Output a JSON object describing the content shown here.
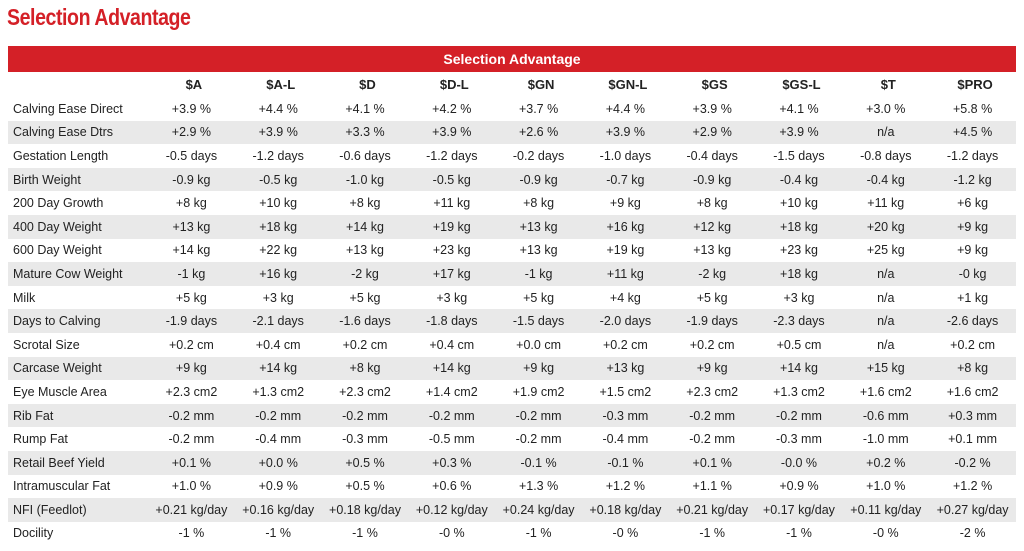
{
  "header": {
    "title": "Selection Advantage"
  },
  "table": {
    "title": "Selection Advantage",
    "columns": [
      "$A",
      "$A-L",
      "$D",
      "$D-L",
      "$GN",
      "$GN-L",
      "$GS",
      "$GS-L",
      "$T",
      "$PRO"
    ],
    "rows": [
      [
        "Calving Ease Direct",
        "+3.9 %",
        "+4.4 %",
        "+4.1 %",
        "+4.2 %",
        "+3.7 %",
        "+4.4 %",
        "+3.9 %",
        "+4.1 %",
        "+3.0 %",
        "+5.8 %"
      ],
      [
        "Calving Ease Dtrs",
        "+2.9 %",
        "+3.9 %",
        "+3.3 %",
        "+3.9 %",
        "+2.6 %",
        "+3.9 %",
        "+2.9 %",
        "+3.9 %",
        "n/a",
        "+4.5 %"
      ],
      [
        "Gestation Length",
        "-0.5 days",
        "-1.2 days",
        "-0.6 days",
        "-1.2 days",
        "-0.2 days",
        "-1.0 days",
        "-0.4 days",
        "-1.5 days",
        "-0.8 days",
        "-1.2 days"
      ],
      [
        "Birth Weight",
        "-0.9 kg",
        "-0.5 kg",
        "-1.0 kg",
        "-0.5 kg",
        "-0.9 kg",
        "-0.7 kg",
        "-0.9 kg",
        "-0.4 kg",
        "-0.4 kg",
        "-1.2 kg"
      ],
      [
        "200 Day Growth",
        "+8 kg",
        "+10 kg",
        "+8 kg",
        "+11 kg",
        "+8 kg",
        "+9 kg",
        "+8 kg",
        "+10 kg",
        "+11 kg",
        "+6 kg"
      ],
      [
        "400 Day Weight",
        "+13 kg",
        "+18 kg",
        "+14 kg",
        "+19 kg",
        "+13 kg",
        "+16 kg",
        "+12 kg",
        "+18 kg",
        "+20 kg",
        "+9 kg"
      ],
      [
        "600 Day Weight",
        "+14 kg",
        "+22 kg",
        "+13 kg",
        "+23 kg",
        "+13 kg",
        "+19 kg",
        "+13 kg",
        "+23 kg",
        "+25 kg",
        "+9 kg"
      ],
      [
        "Mature Cow Weight",
        "-1 kg",
        "+16 kg",
        "-2 kg",
        "+17 kg",
        "-1 kg",
        "+11 kg",
        "-2 kg",
        "+18 kg",
        "n/a",
        "-0 kg"
      ],
      [
        "Milk",
        "+5 kg",
        "+3 kg",
        "+5 kg",
        "+3 kg",
        "+5 kg",
        "+4 kg",
        "+5 kg",
        "+3 kg",
        "n/a",
        "+1 kg"
      ],
      [
        "Days to Calving",
        "-1.9 days",
        "-2.1 days",
        "-1.6 days",
        "-1.8 days",
        "-1.5 days",
        "-2.0 days",
        "-1.9 days",
        "-2.3 days",
        "n/a",
        "-2.6 days"
      ],
      [
        "Scrotal Size",
        "+0.2 cm",
        "+0.4 cm",
        "+0.2 cm",
        "+0.4 cm",
        "+0.0 cm",
        "+0.2 cm",
        "+0.2 cm",
        "+0.5 cm",
        "n/a",
        "+0.2 cm"
      ],
      [
        "Carcase Weight",
        "+9 kg",
        "+14 kg",
        "+8 kg",
        "+14 kg",
        "+9 kg",
        "+13 kg",
        "+9 kg",
        "+14 kg",
        "+15 kg",
        "+8 kg"
      ],
      [
        "Eye Muscle  Area",
        "+2.3 cm2",
        "+1.3 cm2",
        "+2.3 cm2",
        "+1.4 cm2",
        "+1.9 cm2",
        "+1.5 cm2",
        "+2.3 cm2",
        "+1.3 cm2",
        "+1.6 cm2",
        "+1.6 cm2"
      ],
      [
        "Rib Fat",
        "-0.2 mm",
        "-0.2 mm",
        "-0.2 mm",
        "-0.2 mm",
        "-0.2 mm",
        "-0.3 mm",
        "-0.2 mm",
        "-0.2 mm",
        "-0.6 mm",
        "+0.3 mm"
      ],
      [
        "Rump Fat",
        "-0.2 mm",
        "-0.4 mm",
        "-0.3 mm",
        "-0.5 mm",
        "-0.2 mm",
        "-0.4 mm",
        "-0.2 mm",
        "-0.3 mm",
        "-1.0 mm",
        "+0.1 mm"
      ],
      [
        "Retail Beef Yield",
        "+0.1 %",
        "+0.0 %",
        "+0.5 %",
        "+0.3 %",
        "-0.1 %",
        "-0.1 %",
        "+0.1 %",
        "-0.0 %",
        "+0.2 %",
        "-0.2 %"
      ],
      [
        "Intramuscular Fat",
        "+1.0 %",
        "+0.9 %",
        "+0.5 %",
        "+0.6 %",
        "+1.3 %",
        "+1.2 %",
        "+1.1 %",
        "+0.9 %",
        "+1.0 %",
        "+1.2 %"
      ],
      [
        "NFI (Feedlot)",
        "+0.21 kg/day",
        "+0.16 kg/day",
        "+0.18 kg/day",
        "+0.12 kg/day",
        "+0.24 kg/day",
        "+0.18 kg/day",
        "+0.21 kg/day",
        "+0.17 kg/day",
        "+0.11 kg/day",
        "+0.27 kg/day"
      ],
      [
        "Docility",
        "-1 %",
        "-1 %",
        "-1 %",
        "-0 %",
        "-1 %",
        "-0 %",
        "-1 %",
        "-1 %",
        "-0 %",
        "-2 %"
      ]
    ]
  }
}
